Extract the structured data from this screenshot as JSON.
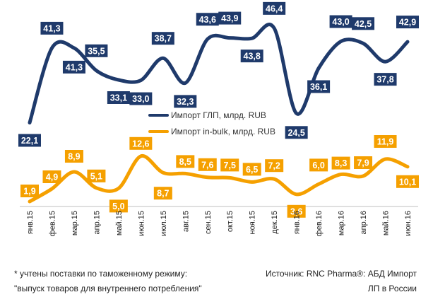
{
  "chart_data": {
    "type": "line",
    "categories": [
      "янв.15",
      "фев.15",
      "мар.15",
      "апр.15",
      "май.15",
      "июн.15",
      "июл.15",
      "авг.15",
      "сен.15",
      "окт.15",
      "ноя.15",
      "дек.15",
      "янв.16",
      "фев.16",
      "мар.16",
      "апр.16",
      "май.16",
      "июн.16"
    ],
    "series": [
      {
        "name": "Импорт ГЛП, млрд. RUB",
        "color": "#1f3a6b",
        "values": [
          22.1,
          41.3,
          41.3,
          35.5,
          33.1,
          33.0,
          38.7,
          32.3,
          43.6,
          43.9,
          43.8,
          46.4,
          24.5,
          36.1,
          43.0,
          42.5,
          37.8,
          42.9
        ],
        "labels": [
          "22,1",
          "41,3",
          "41,3",
          "35,5",
          "33,1",
          "33,0",
          "38,7",
          "32,3",
          "43,6",
          "43,9",
          "43,8",
          "46,4",
          "24,5",
          "36,1",
          "43,0",
          "42,5",
          "37,8",
          "42,9"
        ]
      },
      {
        "name": "Импорт in-bulk, млрд. RUB",
        "color": "#f5a000",
        "values": [
          1.9,
          4.9,
          8.9,
          5.1,
          5.0,
          12.6,
          8.7,
          8.5,
          7.6,
          7.5,
          6.5,
          7.2,
          3.6,
          6.0,
          8.3,
          7.9,
          11.9,
          10.1
        ],
        "labels": [
          "1,9",
          "4,9",
          "8,9",
          "5,1",
          "5,0",
          "12,6",
          "8,7",
          "8,5",
          "7,6",
          "7,5",
          "6,5",
          "7,2",
          "3,6",
          "6,0",
          "8,3",
          "7,9",
          "11,9",
          "10,1"
        ]
      }
    ],
    "legend_position": "center",
    "grid": false
  },
  "footnote": {
    "line1": "* учтены поставки по таможенному режиму:",
    "line2": "\"выпуск товаров для внутреннего потребления\""
  },
  "source": {
    "line1": "Источник: RNC Pharma®: АБД Импорт",
    "line2": "ЛП в России"
  }
}
